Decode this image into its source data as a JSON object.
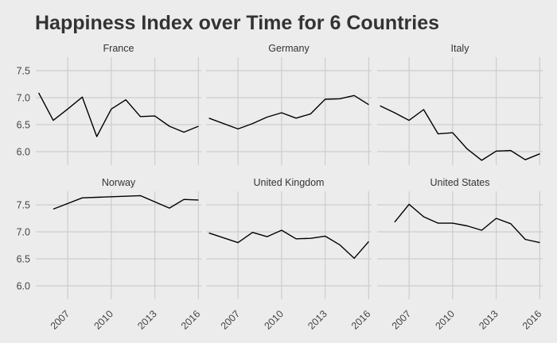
{
  "chart_data": {
    "type": "line",
    "title": "Happiness Index over Time for 6 Countries",
    "xlabel": "",
    "ylabel": "",
    "xlim": [
      2004.8,
      2016.2
    ],
    "ylim": [
      5.75,
      7.75
    ],
    "x_ticks": [
      "2007",
      "2010",
      "2013",
      "2016"
    ],
    "y_ticks": [
      "6.0",
      "6.5",
      "7.0",
      "7.5"
    ],
    "grid": true,
    "colors": {
      "line": "#000000",
      "background": "#ececec",
      "grid": "#cdcdcd"
    },
    "panels": [
      {
        "name": "France",
        "x": [
          2005,
          2006,
          2007,
          2008,
          2009,
          2010,
          2011,
          2012,
          2013,
          2014,
          2015,
          2016
        ],
        "y": [
          7.09,
          6.58,
          6.79,
          7.01,
          6.28,
          6.79,
          6.96,
          6.65,
          6.66,
          6.47,
          6.36,
          6.47
        ]
      },
      {
        "name": "Germany",
        "x": [
          2005,
          2007,
          2008,
          2009,
          2010,
          2011,
          2012,
          2013,
          2014,
          2015,
          2016
        ],
        "y": [
          6.62,
          6.42,
          6.52,
          6.64,
          6.72,
          6.62,
          6.7,
          6.97,
          6.98,
          7.04,
          6.87
        ]
      },
      {
        "name": "Italy",
        "x": [
          2005,
          2006,
          2007,
          2008,
          2009,
          2010,
          2011,
          2012,
          2013,
          2014,
          2015,
          2016
        ],
        "y": [
          6.85,
          6.72,
          6.58,
          6.78,
          6.33,
          6.35,
          6.05,
          5.84,
          6.01,
          6.02,
          5.85,
          5.96
        ]
      },
      {
        "name": "Norway",
        "x": [
          2006,
          2008,
          2010,
          2012,
          2014,
          2015,
          2016
        ],
        "y": [
          7.42,
          7.63,
          7.65,
          7.67,
          7.44,
          7.6,
          7.59
        ]
      },
      {
        "name": "United Kingdom",
        "x": [
          2005,
          2007,
          2008,
          2009,
          2010,
          2011,
          2012,
          2013,
          2014,
          2015,
          2016
        ],
        "y": [
          6.98,
          6.8,
          6.99,
          6.91,
          7.03,
          6.87,
          6.88,
          6.92,
          6.76,
          6.51,
          6.82
        ]
      },
      {
        "name": "United States",
        "x": [
          2006,
          2007,
          2008,
          2009,
          2010,
          2011,
          2012,
          2013,
          2014,
          2015,
          2016
        ],
        "y": [
          7.18,
          7.51,
          7.28,
          7.16,
          7.16,
          7.11,
          7.03,
          7.25,
          7.15,
          6.86,
          6.8
        ]
      }
    ]
  }
}
